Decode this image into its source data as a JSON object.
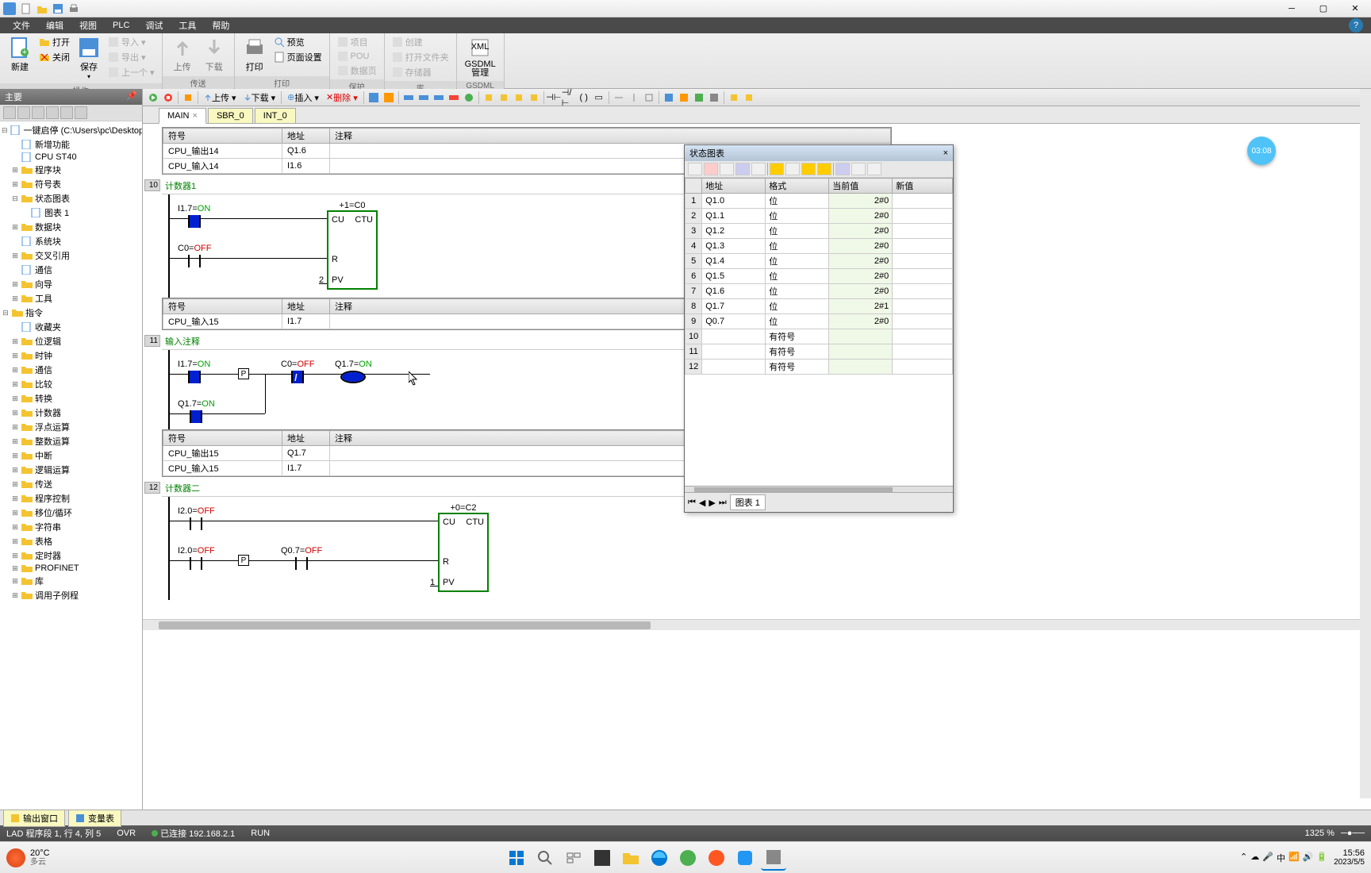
{
  "titlebar": {
    "qat": [
      "new-doc",
      "open",
      "save",
      "print"
    ]
  },
  "menubar": {
    "items": [
      "文件",
      "编辑",
      "视图",
      "PLC",
      "调试",
      "工具",
      "帮助"
    ]
  },
  "ribbon": {
    "groups": [
      {
        "label": "操作",
        "big": [
          {
            "label": "新建",
            "icon": "new"
          }
        ],
        "cols": [
          [
            {
              "label": "打开",
              "icon": "open"
            },
            {
              "label": "关闭",
              "icon": "close"
            }
          ],
          [
            {
              "label": "保存",
              "icon": "save"
            }
          ],
          [
            {
              "label": "导入 ▾",
              "icon": "import",
              "disabled": true
            },
            {
              "label": "导出 ▾",
              "icon": "export",
              "disabled": true
            },
            {
              "label": "上一个 ▾",
              "icon": "prev",
              "disabled": true
            }
          ]
        ]
      },
      {
        "label": "传送",
        "big": [
          {
            "label": "上传",
            "icon": "upload",
            "disabled": true
          },
          {
            "label": "下载",
            "icon": "download",
            "disabled": true
          }
        ]
      },
      {
        "label": "打印",
        "big": [
          {
            "label": "打印",
            "icon": "print"
          }
        ],
        "cols": [
          [
            {
              "label": "预览",
              "icon": "preview"
            },
            {
              "label": "页面设置",
              "icon": "pagesetup"
            }
          ]
        ]
      },
      {
        "label": "保护",
        "cols": [
          [
            {
              "label": "项目",
              "icon": "project",
              "disabled": true
            },
            {
              "label": "POU",
              "icon": "pou",
              "disabled": true
            },
            {
              "label": "数据页",
              "icon": "datapage",
              "disabled": true
            }
          ]
        ]
      },
      {
        "label": "库",
        "cols": [
          [
            {
              "label": "创建",
              "icon": "create",
              "disabled": true
            },
            {
              "label": "打开文件夹",
              "icon": "openfolder",
              "disabled": true
            },
            {
              "label": "存储器",
              "icon": "memory",
              "disabled": true
            }
          ]
        ]
      },
      {
        "label": "GSDML",
        "big": [
          {
            "label": "GSDML\n管理",
            "icon": "gsdml"
          }
        ]
      }
    ]
  },
  "sidebar": {
    "title": "主要",
    "tree": [
      {
        "label": "一键启停 (C:\\Users\\pc\\Desktop)",
        "indent": 0,
        "toggle": "−",
        "icon": "project"
      },
      {
        "label": "新增功能",
        "indent": 1,
        "toggle": "",
        "icon": "feature"
      },
      {
        "label": "CPU ST40",
        "indent": 1,
        "toggle": "",
        "icon": "cpu"
      },
      {
        "label": "程序块",
        "indent": 1,
        "toggle": "+",
        "icon": "folder"
      },
      {
        "label": "符号表",
        "indent": 1,
        "toggle": "+",
        "icon": "folder"
      },
      {
        "label": "状态图表",
        "indent": 1,
        "toggle": "−",
        "icon": "folder"
      },
      {
        "label": "图表 1",
        "indent": 2,
        "toggle": "",
        "icon": "table"
      },
      {
        "label": "数据块",
        "indent": 1,
        "toggle": "+",
        "icon": "folder"
      },
      {
        "label": "系统块",
        "indent": 1,
        "toggle": "",
        "icon": "block"
      },
      {
        "label": "交叉引用",
        "indent": 1,
        "toggle": "+",
        "icon": "folder"
      },
      {
        "label": "通信",
        "indent": 1,
        "toggle": "",
        "icon": "comm"
      },
      {
        "label": "向导",
        "indent": 1,
        "toggle": "+",
        "icon": "folder"
      },
      {
        "label": "工具",
        "indent": 1,
        "toggle": "+",
        "icon": "folder"
      },
      {
        "label": "指令",
        "indent": 0,
        "toggle": "−",
        "icon": "folder"
      },
      {
        "label": "收藏夹",
        "indent": 1,
        "toggle": "",
        "icon": "fav"
      },
      {
        "label": "位逻辑",
        "indent": 1,
        "toggle": "+",
        "icon": "folder"
      },
      {
        "label": "时钟",
        "indent": 1,
        "toggle": "+",
        "icon": "folder"
      },
      {
        "label": "通信",
        "indent": 1,
        "toggle": "+",
        "icon": "folder"
      },
      {
        "label": "比较",
        "indent": 1,
        "toggle": "+",
        "icon": "folder"
      },
      {
        "label": "转换",
        "indent": 1,
        "toggle": "+",
        "icon": "folder"
      },
      {
        "label": "计数器",
        "indent": 1,
        "toggle": "+",
        "icon": "folder"
      },
      {
        "label": "浮点运算",
        "indent": 1,
        "toggle": "+",
        "icon": "folder"
      },
      {
        "label": "整数运算",
        "indent": 1,
        "toggle": "+",
        "icon": "folder"
      },
      {
        "label": "中断",
        "indent": 1,
        "toggle": "+",
        "icon": "folder"
      },
      {
        "label": "逻辑运算",
        "indent": 1,
        "toggle": "+",
        "icon": "folder"
      },
      {
        "label": "传送",
        "indent": 1,
        "toggle": "+",
        "icon": "folder"
      },
      {
        "label": "程序控制",
        "indent": 1,
        "toggle": "+",
        "icon": "folder"
      },
      {
        "label": "移位/循环",
        "indent": 1,
        "toggle": "+",
        "icon": "folder"
      },
      {
        "label": "字符串",
        "indent": 1,
        "toggle": "+",
        "icon": "folder"
      },
      {
        "label": "表格",
        "indent": 1,
        "toggle": "+",
        "icon": "folder"
      },
      {
        "label": "定时器",
        "indent": 1,
        "toggle": "+",
        "icon": "folder"
      },
      {
        "label": "PROFINET",
        "indent": 1,
        "toggle": "+",
        "icon": "folder"
      },
      {
        "label": "库",
        "indent": 1,
        "toggle": "+",
        "icon": "folder"
      },
      {
        "label": "调用子例程",
        "indent": 1,
        "toggle": "+",
        "icon": "folder"
      }
    ]
  },
  "editor": {
    "toolbar_groups": [
      [
        "run-green",
        "stop-red"
      ],
      [
        "compile"
      ],
      [
        "upload-label",
        "download-label"
      ],
      [
        "insert-label",
        "delete-label"
      ],
      [
        "d1",
        "d2"
      ],
      [
        "w1",
        "w2",
        "w3",
        "w4",
        "w5"
      ],
      [
        "force",
        "unforce",
        "readall",
        "writeall"
      ],
      [
        "c1",
        "c2",
        "c3",
        "c4"
      ],
      [
        "h1",
        "h2",
        "h3"
      ],
      [
        "m1",
        "m2",
        "m3",
        "m4"
      ],
      [
        "x1",
        "x2"
      ]
    ],
    "toolbar_labels": {
      "upload-label": "上传 ▾",
      "download-label": "下载 ▾",
      "insert-label": "插入 ▾",
      "delete-label": "删除 ▾"
    },
    "tabs": [
      {
        "label": "MAIN",
        "active": true,
        "closable": true
      },
      {
        "label": "SBR_0",
        "active": false,
        "closable": false
      },
      {
        "label": "INT_0",
        "active": false,
        "closable": false
      }
    ]
  },
  "sym_headers": [
    "符号",
    "地址",
    "注释"
  ],
  "strip0": {
    "rows": [
      {
        "sym": "CPU_输出14",
        "addr": "Q1.6",
        "comment": ""
      },
      {
        "sym": "CPU_输入14",
        "addr": "I1.6",
        "comment": ""
      }
    ]
  },
  "net10": {
    "num": "10",
    "title": "计数器1",
    "c1": {
      "addr": "I1.7=",
      "state": "ON",
      "on": true
    },
    "c2": {
      "addr": "C0=",
      "state": "OFF",
      "on": false
    },
    "block": {
      "name": "+1=C0",
      "type": "CTU",
      "pins": {
        "cu": "CU",
        "r": "R",
        "pv": "PV"
      },
      "pv_val": "2"
    }
  },
  "strip1": {
    "rows": [
      {
        "sym": "CPU_输入15",
        "addr": "I1.7",
        "comment": ""
      }
    ]
  },
  "net11": {
    "num": "11",
    "title": "输入注释",
    "c1": {
      "addr": "I1.7=",
      "state": "ON"
    },
    "c2": {
      "addr": "Q1.7=",
      "state": "ON"
    },
    "c3": {
      "addr": "C0=",
      "state": "OFF"
    },
    "coil": {
      "addr": "Q1.7=",
      "state": "ON"
    },
    "p": "P"
  },
  "strip2": {
    "rows": [
      {
        "sym": "CPU_输出15",
        "addr": "Q1.7",
        "comment": ""
      },
      {
        "sym": "CPU_输入15",
        "addr": "I1.7",
        "comment": ""
      }
    ]
  },
  "net12": {
    "num": "12",
    "title": "计数器二",
    "c1": {
      "addr": "I2.0=",
      "state": "OFF"
    },
    "c2": {
      "addr": "I2.0=",
      "state": "OFF"
    },
    "c3": {
      "addr": "Q0.7=",
      "state": "OFF"
    },
    "p": "P",
    "block": {
      "name": "+0=C2",
      "type": "CTU",
      "pins": {
        "cu": "CU",
        "r": "R",
        "pv": "PV"
      },
      "pv_val": "1"
    }
  },
  "status": {
    "title": "状态图表",
    "headers": [
      "",
      "地址",
      "格式",
      "当前值",
      "新值"
    ],
    "rows": [
      {
        "n": "1",
        "addr": "Q1.0",
        "fmt": "位",
        "cur": "2#0",
        "new": ""
      },
      {
        "n": "2",
        "addr": "Q1.1",
        "fmt": "位",
        "cur": "2#0",
        "new": ""
      },
      {
        "n": "3",
        "addr": "Q1.2",
        "fmt": "位",
        "cur": "2#0",
        "new": ""
      },
      {
        "n": "4",
        "addr": "Q1.3",
        "fmt": "位",
        "cur": "2#0",
        "new": ""
      },
      {
        "n": "5",
        "addr": "Q1.4",
        "fmt": "位",
        "cur": "2#0",
        "new": ""
      },
      {
        "n": "6",
        "addr": "Q1.5",
        "fmt": "位",
        "cur": "2#0",
        "new": ""
      },
      {
        "n": "7",
        "addr": "Q1.6",
        "fmt": "位",
        "cur": "2#0",
        "new": ""
      },
      {
        "n": "8",
        "addr": "Q1.7",
        "fmt": "位",
        "cur": "2#1",
        "new": ""
      },
      {
        "n": "9",
        "addr": "Q0.7",
        "fmt": "位",
        "cur": "2#0",
        "new": ""
      },
      {
        "n": "10",
        "addr": "",
        "fmt": "有符号",
        "cur": "",
        "new": ""
      },
      {
        "n": "11",
        "addr": "",
        "fmt": "有符号",
        "cur": "",
        "new": ""
      },
      {
        "n": "12",
        "addr": "",
        "fmt": "有符号",
        "cur": "",
        "new": ""
      }
    ],
    "footer": "图表 1"
  },
  "time_badge": "03:08",
  "bottom_tabs": [
    "输出窗口",
    "变量表"
  ],
  "statusbar": {
    "left": "LAD 程序段 1, 行 4, 列 5",
    "ovr": "OVR",
    "conn": "已连接 192.168.2.1",
    "run": "RUN",
    "zoom": "1325 %"
  },
  "taskbar": {
    "weather": {
      "temp": "20°C",
      "desc": "多云"
    },
    "clock": {
      "time": "15:56",
      "date": "2023/5/5"
    }
  },
  "colors": {
    "on": "#00a000",
    "off": "#d00000",
    "rail": "#000000",
    "fill": "#0020d0",
    "block": "#008000"
  }
}
